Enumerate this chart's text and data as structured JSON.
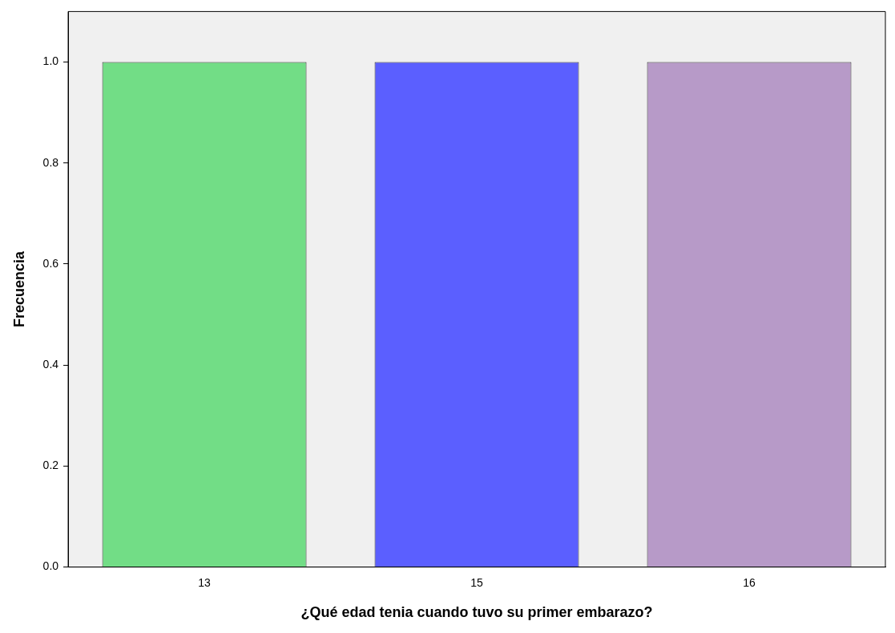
{
  "chart_data": {
    "type": "bar",
    "xlabel": "¿Qué edad tenia cuando tuvo su primer embarazo?",
    "ylabel": "Frecuencia",
    "categories": [
      "13",
      "15",
      "16"
    ],
    "values": [
      1,
      1,
      1
    ],
    "colors": [
      "#72dd86",
      "#5b5fff",
      "#b79ac8"
    ],
    "ylim": [
      0,
      1.1
    ],
    "yticks": [
      {
        "value": 0,
        "label": "0.0"
      },
      {
        "value": 0.2,
        "label": "0.2"
      },
      {
        "value": 0.4,
        "label": "0.4"
      },
      {
        "value": 0.6,
        "label": "0.6"
      },
      {
        "value": 0.8,
        "label": "0.8"
      },
      {
        "value": 1,
        "label": "1.0"
      }
    ],
    "grid": false,
    "legend": false
  }
}
